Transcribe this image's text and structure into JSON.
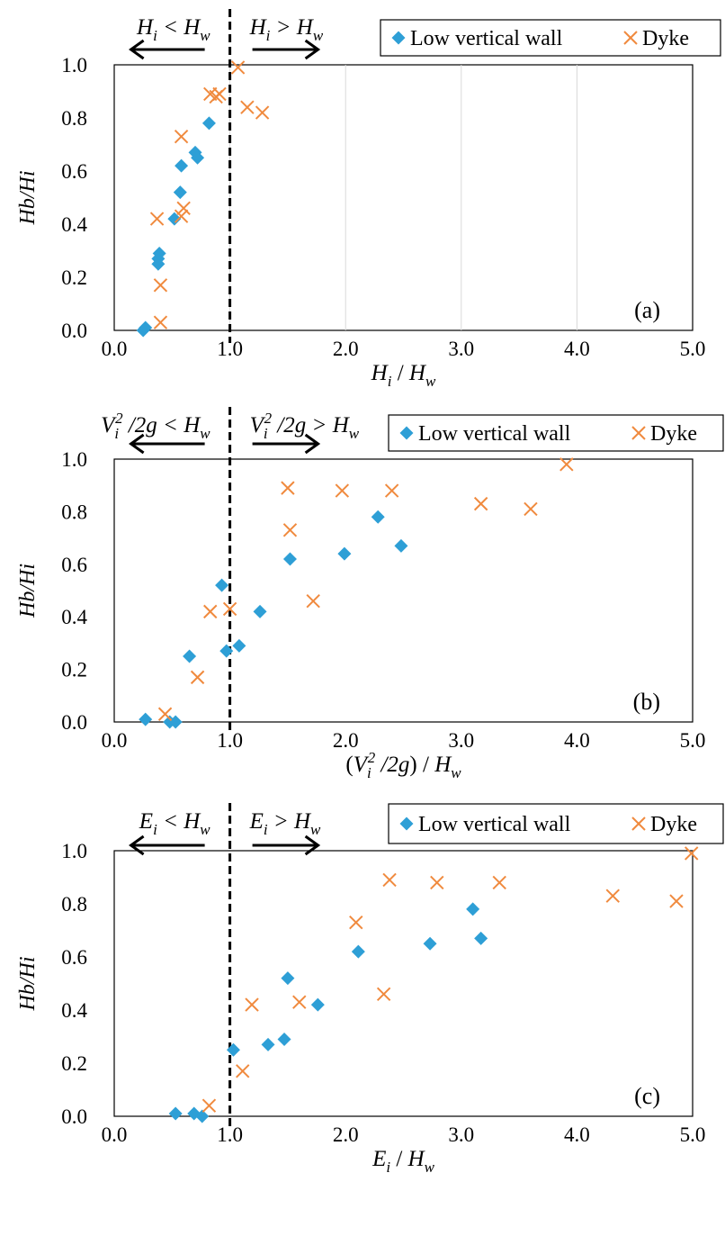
{
  "legend": {
    "series_a": "Low vertical wall",
    "series_b": "Dyke"
  },
  "colors": {
    "series_a": "#2E9FD6",
    "series_b": "#F08A3E",
    "grid": "#D9D9D9",
    "axis": "#000000"
  },
  "chart_data": [
    {
      "type": "scatter",
      "panel_label": "(a)",
      "ylabel": "Hb/Hi",
      "xlabel": "Hi / Hw",
      "xlim": [
        0,
        5
      ],
      "ylim": [
        0,
        1
      ],
      "x_ticks": [
        "0.0",
        "1.0",
        "2.0",
        "3.0",
        "4.0",
        "5.0"
      ],
      "y_ticks": [
        "0.0",
        "0.2",
        "0.4",
        "0.6",
        "0.8",
        "1.0"
      ],
      "threshold_x": 1.0,
      "annotation_left": "Hi < Hw",
      "annotation_right": "Hi > Hw",
      "grid": "vertical",
      "legend_position": "top-right",
      "series": [
        {
          "name": "Low vertical wall",
          "marker": "diamond",
          "points": [
            [
              0.25,
              0.0
            ],
            [
              0.27,
              0.01
            ],
            [
              0.38,
              0.25
            ],
            [
              0.38,
              0.27
            ],
            [
              0.39,
              0.29
            ],
            [
              0.52,
              0.42
            ],
            [
              0.57,
              0.52
            ],
            [
              0.58,
              0.62
            ],
            [
              0.7,
              0.67
            ],
            [
              0.72,
              0.65
            ],
            [
              0.82,
              0.78
            ]
          ]
        },
        {
          "name": "Dyke",
          "marker": "x",
          "points": [
            [
              0.4,
              0.03
            ],
            [
              0.4,
              0.17
            ],
            [
              0.37,
              0.42
            ],
            [
              0.58,
              0.43
            ],
            [
              0.6,
              0.46
            ],
            [
              0.58,
              0.73
            ],
            [
              0.83,
              0.89
            ],
            [
              0.88,
              0.88
            ],
            [
              0.91,
              0.89
            ],
            [
              1.07,
              0.99
            ],
            [
              1.15,
              0.84
            ],
            [
              1.28,
              0.82
            ]
          ]
        }
      ]
    },
    {
      "type": "scatter",
      "panel_label": "(b)",
      "ylabel": "Hb/Hi",
      "xlabel": "(Vi²/2g) / Hw",
      "xlim": [
        0,
        5
      ],
      "ylim": [
        0,
        1
      ],
      "x_ticks": [
        "0.0",
        "1.0",
        "2.0",
        "3.0",
        "4.0",
        "5.0"
      ],
      "y_ticks": [
        "0.0",
        "0.2",
        "0.4",
        "0.6",
        "0.8",
        "1.0"
      ],
      "threshold_x": 1.0,
      "annotation_left": "Vi² /2g < Hw",
      "annotation_right": "Vi² /2g > Hw",
      "grid": "none",
      "legend_position": "top-right",
      "series": [
        {
          "name": "Low vertical wall",
          "marker": "diamond",
          "points": [
            [
              0.27,
              0.01
            ],
            [
              0.48,
              0.0
            ],
            [
              0.53,
              0.0
            ],
            [
              0.65,
              0.25
            ],
            [
              0.93,
              0.52
            ],
            [
              0.97,
              0.27
            ],
            [
              1.08,
              0.29
            ],
            [
              1.26,
              0.42
            ],
            [
              1.52,
              0.62
            ],
            [
              1.99,
              0.64
            ],
            [
              2.28,
              0.78
            ],
            [
              2.48,
              0.67
            ]
          ]
        },
        {
          "name": "Dyke",
          "marker": "x",
          "points": [
            [
              0.44,
              0.03
            ],
            [
              0.72,
              0.17
            ],
            [
              0.83,
              0.42
            ],
            [
              1.0,
              0.43
            ],
            [
              1.72,
              0.46
            ],
            [
              1.52,
              0.73
            ],
            [
              1.5,
              0.89
            ],
            [
              1.97,
              0.88
            ],
            [
              2.4,
              0.88
            ],
            [
              3.17,
              0.83
            ],
            [
              3.6,
              0.81
            ],
            [
              3.91,
              0.98
            ]
          ]
        }
      ]
    },
    {
      "type": "scatter",
      "panel_label": "(c)",
      "ylabel": "Hb/Hi",
      "xlabel": "Ei / Hw",
      "xlim": [
        0,
        5
      ],
      "ylim": [
        0,
        1
      ],
      "x_ticks": [
        "0.0",
        "1.0",
        "2.0",
        "3.0",
        "4.0",
        "5.0"
      ],
      "y_ticks": [
        "0.0",
        "0.2",
        "0.4",
        "0.6",
        "0.8",
        "1.0"
      ],
      "threshold_x": 1.0,
      "annotation_left": "Ei < Hw",
      "annotation_right": "Ei > Hw",
      "grid": "none",
      "legend_position": "top-right",
      "series": [
        {
          "name": "Low vertical wall",
          "marker": "diamond",
          "points": [
            [
              0.53,
              0.01
            ],
            [
              0.69,
              0.01
            ],
            [
              0.76,
              0.0
            ],
            [
              1.03,
              0.25
            ],
            [
              1.33,
              0.27
            ],
            [
              1.47,
              0.29
            ],
            [
              1.5,
              0.52
            ],
            [
              1.76,
              0.42
            ],
            [
              2.11,
              0.62
            ],
            [
              2.73,
              0.65
            ],
            [
              3.1,
              0.78
            ],
            [
              3.17,
              0.67
            ]
          ]
        },
        {
          "name": "Dyke",
          "marker": "x",
          "points": [
            [
              0.82,
              0.04
            ],
            [
              1.11,
              0.17
            ],
            [
              1.19,
              0.42
            ],
            [
              1.6,
              0.43
            ],
            [
              2.33,
              0.46
            ],
            [
              2.09,
              0.73
            ],
            [
              2.38,
              0.89
            ],
            [
              2.79,
              0.88
            ],
            [
              3.33,
              0.88
            ],
            [
              4.31,
              0.83
            ],
            [
              4.86,
              0.81
            ],
            [
              4.99,
              0.99
            ]
          ]
        }
      ]
    }
  ]
}
